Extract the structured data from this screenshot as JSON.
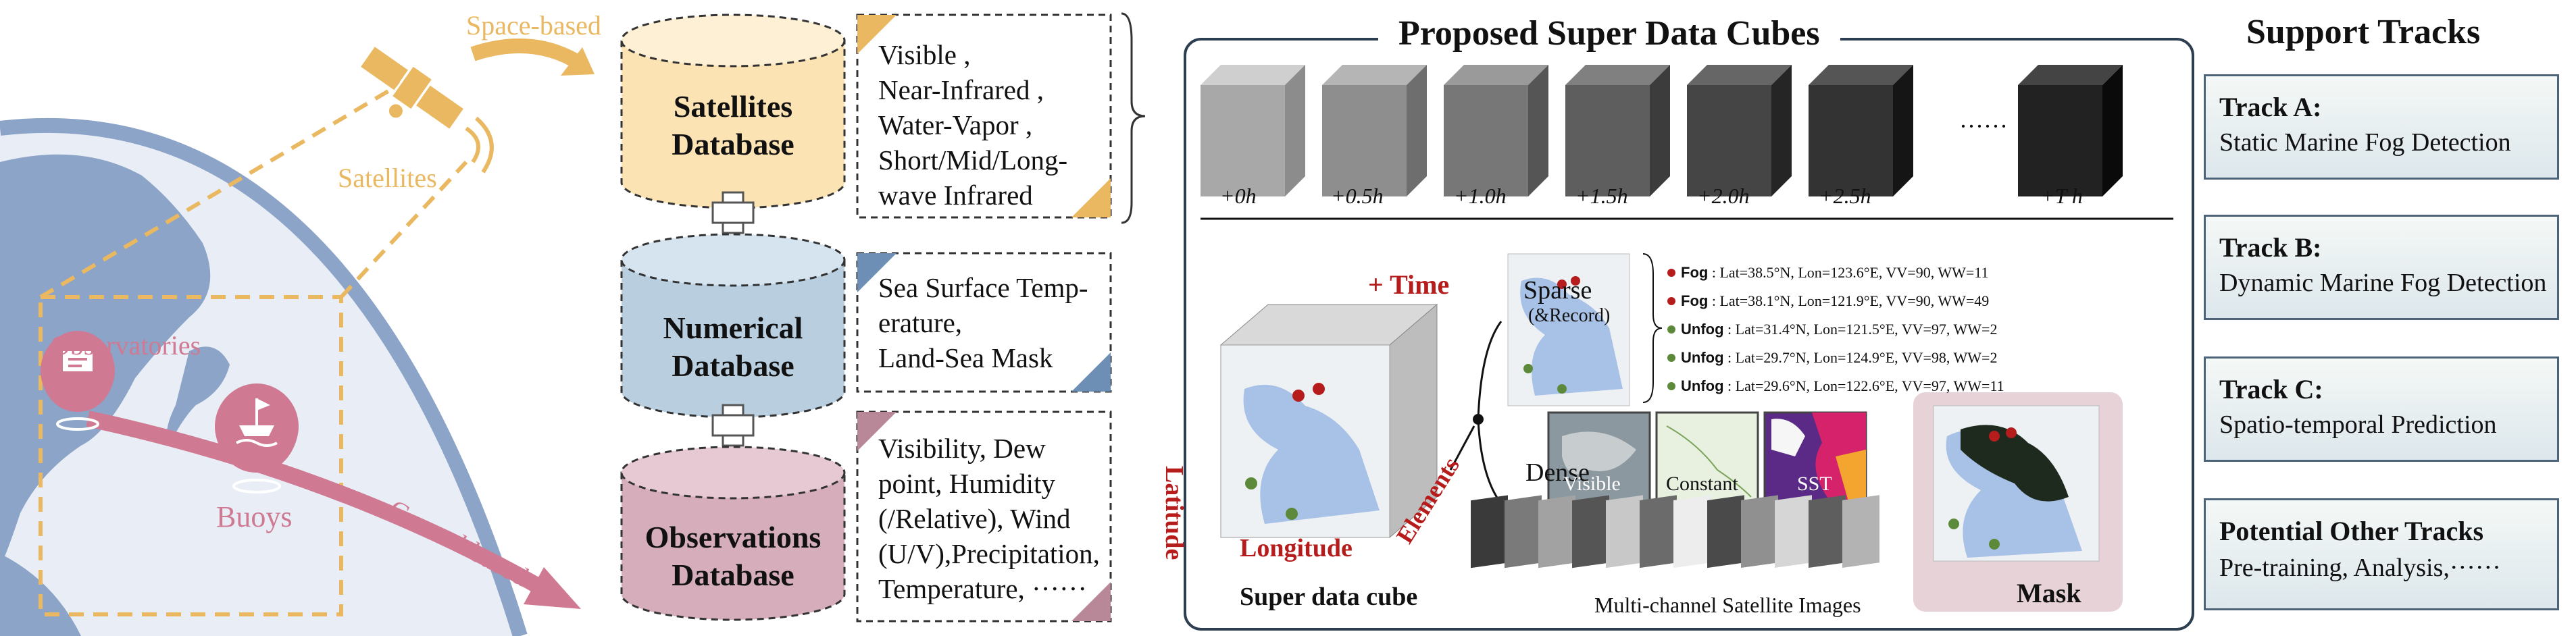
{
  "left_panel": {
    "space_based": "Space-based",
    "satellites": "Satellites",
    "observatories": "Observatories",
    "buoys": "Buoys",
    "ground_based": "Ground-based"
  },
  "databases": [
    {
      "line1": "Satellites",
      "line2": "Database",
      "color": "#fbe3b3"
    },
    {
      "line1": "Numerical",
      "line2": "Database",
      "color": "#b9cfe0"
    },
    {
      "line1": "Observations",
      "line2": "Database",
      "color": "#d6aebb"
    }
  ],
  "notes": {
    "satellites": [
      "Visible ,",
      "Near-Infrared ,",
      "Water-Vapor ,",
      "Short/Mid/Long-",
      "wave Infrared"
    ],
    "numerical": [
      "Sea Surface Temp-",
      "erature,",
      "Land-Sea Mask"
    ],
    "observations": [
      "Visibility, Dew",
      "point, Humidity",
      "(/Relative), Wind",
      "(U/V),Precipitation,",
      "Temperature, ······"
    ]
  },
  "cubes_panel": {
    "title": "Proposed Super Data Cubes",
    "time_labels": [
      "+0h",
      "+0.5h",
      "+1.0h",
      "+1.5h",
      "+2.0h",
      "+2.5h",
      "+T h"
    ],
    "ellipsis": "······",
    "plus_time": "+ Time",
    "latitude": "Latitude",
    "longitude": "Longitude",
    "elements": "Elements",
    "super_cube_caption": "Super data cube",
    "sparse": "Sparse",
    "record": "(&Record)",
    "dense": "Dense",
    "visible": "Visible",
    "constant": "Constant",
    "sst": "SST",
    "mask": "Mask",
    "multichannel_caption": "Multi-channel Satellite Images",
    "records": [
      {
        "label": "Fog",
        "text": ": Lat=38.5°N, Lon=123.6°E, VV=90, WW=11",
        "dot": "#b71c1c"
      },
      {
        "label": "Fog",
        "text": ": Lat=38.1°N, Lon=121.9°E, VV=90, WW=49",
        "dot": "#b71c1c"
      },
      {
        "label": "Unfog",
        "text": ": Lat=31.4°N, Lon=121.5°E, VV=97, WW=2",
        "dot": "#5d8a3a"
      },
      {
        "label": "Unfog",
        "text": ": Lat=29.7°N, Lon=124.9°E, VV=98, WW=2",
        "dot": "#5d8a3a"
      },
      {
        "label": "Unfog",
        "text": ": Lat=29.6°N, Lon=122.6°E, VV=97, WW=11",
        "dot": "#5d8a3a"
      }
    ]
  },
  "support": {
    "title": "Support Tracks",
    "tracks": [
      {
        "name": "Track A:",
        "desc": "Static Marine Fog Detection"
      },
      {
        "name": "Track B:",
        "desc": "Dynamic Marine Fog Detection"
      },
      {
        "name": "Track C:",
        "desc": "Spatio-temporal Prediction"
      },
      {
        "name": "Potential Other Tracks",
        "desc": "Pre-training, Analysis,······"
      }
    ]
  },
  "colors": {
    "satellite_orange": "#eab860",
    "ground_pink": "#cf7a92",
    "earth_blue": "#8ba4c8",
    "panel_border": "#2c3e50",
    "fog_red": "#b71c1c",
    "unfog_green": "#5d8a3a"
  }
}
